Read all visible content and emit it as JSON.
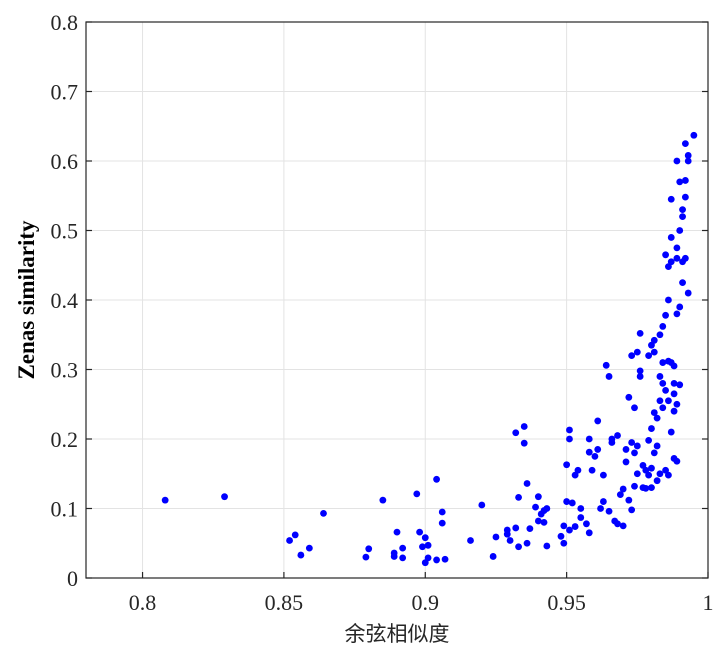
{
  "chart_data": {
    "type": "scatter",
    "title": "",
    "xlabel": "余弦相似度",
    "ylabel": "Zenas similarity",
    "xlim": [
      0.78,
      1.0
    ],
    "ylim": [
      0,
      0.8
    ],
    "xticks": [
      "0.8",
      "0.85",
      "0.9",
      "0.95",
      "1"
    ],
    "xtick_values": [
      0.8,
      0.85,
      0.9,
      0.95,
      1.0
    ],
    "yticks": [
      "0",
      "0.1",
      "0.2",
      "0.3",
      "0.4",
      "0.5",
      "0.6",
      "0.7",
      "0.8"
    ],
    "ytick_values": [
      0,
      0.1,
      0.2,
      0.3,
      0.4,
      0.5,
      0.6,
      0.7,
      0.8
    ],
    "grid": true,
    "marker_color": "#0000ff",
    "points": [
      [
        0.808,
        0.112
      ],
      [
        0.829,
        0.117
      ],
      [
        0.852,
        0.054
      ],
      [
        0.854,
        0.062
      ],
      [
        0.856,
        0.033
      ],
      [
        0.859,
        0.043
      ],
      [
        0.864,
        0.093
      ],
      [
        0.879,
        0.03
      ],
      [
        0.88,
        0.042
      ],
      [
        0.885,
        0.112
      ],
      [
        0.889,
        0.031
      ],
      [
        0.889,
        0.036
      ],
      [
        0.89,
        0.066
      ],
      [
        0.892,
        0.043
      ],
      [
        0.892,
        0.029
      ],
      [
        0.897,
        0.121
      ],
      [
        0.898,
        0.066
      ],
      [
        0.899,
        0.045
      ],
      [
        0.9,
        0.058
      ],
      [
        0.9,
        0.022
      ],
      [
        0.901,
        0.047
      ],
      [
        0.901,
        0.029
      ],
      [
        0.904,
        0.142
      ],
      [
        0.904,
        0.026
      ],
      [
        0.906,
        0.095
      ],
      [
        0.906,
        0.079
      ],
      [
        0.907,
        0.027
      ],
      [
        0.916,
        0.054
      ],
      [
        0.92,
        0.105
      ],
      [
        0.924,
        0.031
      ],
      [
        0.925,
        0.059
      ],
      [
        0.929,
        0.063
      ],
      [
        0.929,
        0.069
      ],
      [
        0.93,
        0.054
      ],
      [
        0.932,
        0.072
      ],
      [
        0.932,
        0.209
      ],
      [
        0.933,
        0.116
      ],
      [
        0.933,
        0.045
      ],
      [
        0.935,
        0.194
      ],
      [
        0.935,
        0.218
      ],
      [
        0.936,
        0.136
      ],
      [
        0.936,
        0.05
      ],
      [
        0.937,
        0.071
      ],
      [
        0.939,
        0.102
      ],
      [
        0.94,
        0.117
      ],
      [
        0.94,
        0.082
      ],
      [
        0.941,
        0.092
      ],
      [
        0.942,
        0.097
      ],
      [
        0.942,
        0.08
      ],
      [
        0.943,
        0.046
      ],
      [
        0.943,
        0.1
      ],
      [
        0.948,
        0.06
      ],
      [
        0.949,
        0.05
      ],
      [
        0.949,
        0.075
      ],
      [
        0.95,
        0.11
      ],
      [
        0.95,
        0.163
      ],
      [
        0.951,
        0.069
      ],
      [
        0.951,
        0.213
      ],
      [
        0.951,
        0.2
      ],
      [
        0.952,
        0.108
      ],
      [
        0.953,
        0.148
      ],
      [
        0.953,
        0.074
      ],
      [
        0.954,
        0.155
      ],
      [
        0.955,
        0.1
      ],
      [
        0.955,
        0.087
      ],
      [
        0.957,
        0.078
      ],
      [
        0.958,
        0.065
      ],
      [
        0.958,
        0.181
      ],
      [
        0.958,
        0.2
      ],
      [
        0.959,
        0.155
      ],
      [
        0.96,
        0.175
      ],
      [
        0.961,
        0.226
      ],
      [
        0.961,
        0.185
      ],
      [
        0.962,
        0.1
      ],
      [
        0.963,
        0.11
      ],
      [
        0.963,
        0.148
      ],
      [
        0.964,
        0.306
      ],
      [
        0.965,
        0.29
      ],
      [
        0.965,
        0.096
      ],
      [
        0.966,
        0.2
      ],
      [
        0.966,
        0.195
      ],
      [
        0.967,
        0.082
      ],
      [
        0.968,
        0.078
      ],
      [
        0.968,
        0.205
      ],
      [
        0.969,
        0.12
      ],
      [
        0.97,
        0.128
      ],
      [
        0.97,
        0.075
      ],
      [
        0.971,
        0.185
      ],
      [
        0.971,
        0.167
      ],
      [
        0.972,
        0.26
      ],
      [
        0.972,
        0.112
      ],
      [
        0.973,
        0.098
      ],
      [
        0.973,
        0.195
      ],
      [
        0.973,
        0.32
      ],
      [
        0.974,
        0.245
      ],
      [
        0.974,
        0.18
      ],
      [
        0.974,
        0.132
      ],
      [
        0.975,
        0.325
      ],
      [
        0.975,
        0.19
      ],
      [
        0.975,
        0.15
      ],
      [
        0.976,
        0.298
      ],
      [
        0.976,
        0.29
      ],
      [
        0.976,
        0.352
      ],
      [
        0.977,
        0.162
      ],
      [
        0.977,
        0.13
      ],
      [
        0.978,
        0.155
      ],
      [
        0.978,
        0.129
      ],
      [
        0.979,
        0.32
      ],
      [
        0.979,
        0.198
      ],
      [
        0.979,
        0.148
      ],
      [
        0.98,
        0.215
      ],
      [
        0.98,
        0.335
      ],
      [
        0.98,
        0.158
      ],
      [
        0.98,
        0.13
      ],
      [
        0.981,
        0.325
      ],
      [
        0.981,
        0.342
      ],
      [
        0.981,
        0.238
      ],
      [
        0.981,
        0.18
      ],
      [
        0.982,
        0.23
      ],
      [
        0.982,
        0.14
      ],
      [
        0.982,
        0.19
      ],
      [
        0.983,
        0.35
      ],
      [
        0.983,
        0.29
      ],
      [
        0.983,
        0.255
      ],
      [
        0.983,
        0.15
      ],
      [
        0.984,
        0.31
      ],
      [
        0.984,
        0.362
      ],
      [
        0.984,
        0.28
      ],
      [
        0.984,
        0.245
      ],
      [
        0.985,
        0.378
      ],
      [
        0.985,
        0.465
      ],
      [
        0.985,
        0.27
      ],
      [
        0.985,
        0.155
      ],
      [
        0.986,
        0.4
      ],
      [
        0.986,
        0.448
      ],
      [
        0.986,
        0.312
      ],
      [
        0.986,
        0.255
      ],
      [
        0.986,
        0.148
      ],
      [
        0.987,
        0.545
      ],
      [
        0.987,
        0.49
      ],
      [
        0.987,
        0.455
      ],
      [
        0.987,
        0.31
      ],
      [
        0.987,
        0.21
      ],
      [
        0.988,
        0.28
      ],
      [
        0.988,
        0.265
      ],
      [
        0.988,
        0.172
      ],
      [
        0.988,
        0.24
      ],
      [
        0.988,
        0.305
      ],
      [
        0.989,
        0.6
      ],
      [
        0.989,
        0.475
      ],
      [
        0.989,
        0.46
      ],
      [
        0.989,
        0.38
      ],
      [
        0.989,
        0.25
      ],
      [
        0.989,
        0.168
      ],
      [
        0.99,
        0.57
      ],
      [
        0.99,
        0.5
      ],
      [
        0.99,
        0.39
      ],
      [
        0.99,
        0.278
      ],
      [
        0.991,
        0.53
      ],
      [
        0.991,
        0.52
      ],
      [
        0.991,
        0.455
      ],
      [
        0.991,
        0.425
      ],
      [
        0.992,
        0.625
      ],
      [
        0.992,
        0.572
      ],
      [
        0.992,
        0.548
      ],
      [
        0.992,
        0.46
      ],
      [
        0.993,
        0.6
      ],
      [
        0.993,
        0.41
      ],
      [
        0.993,
        0.608
      ],
      [
        0.995,
        0.637
      ]
    ]
  }
}
